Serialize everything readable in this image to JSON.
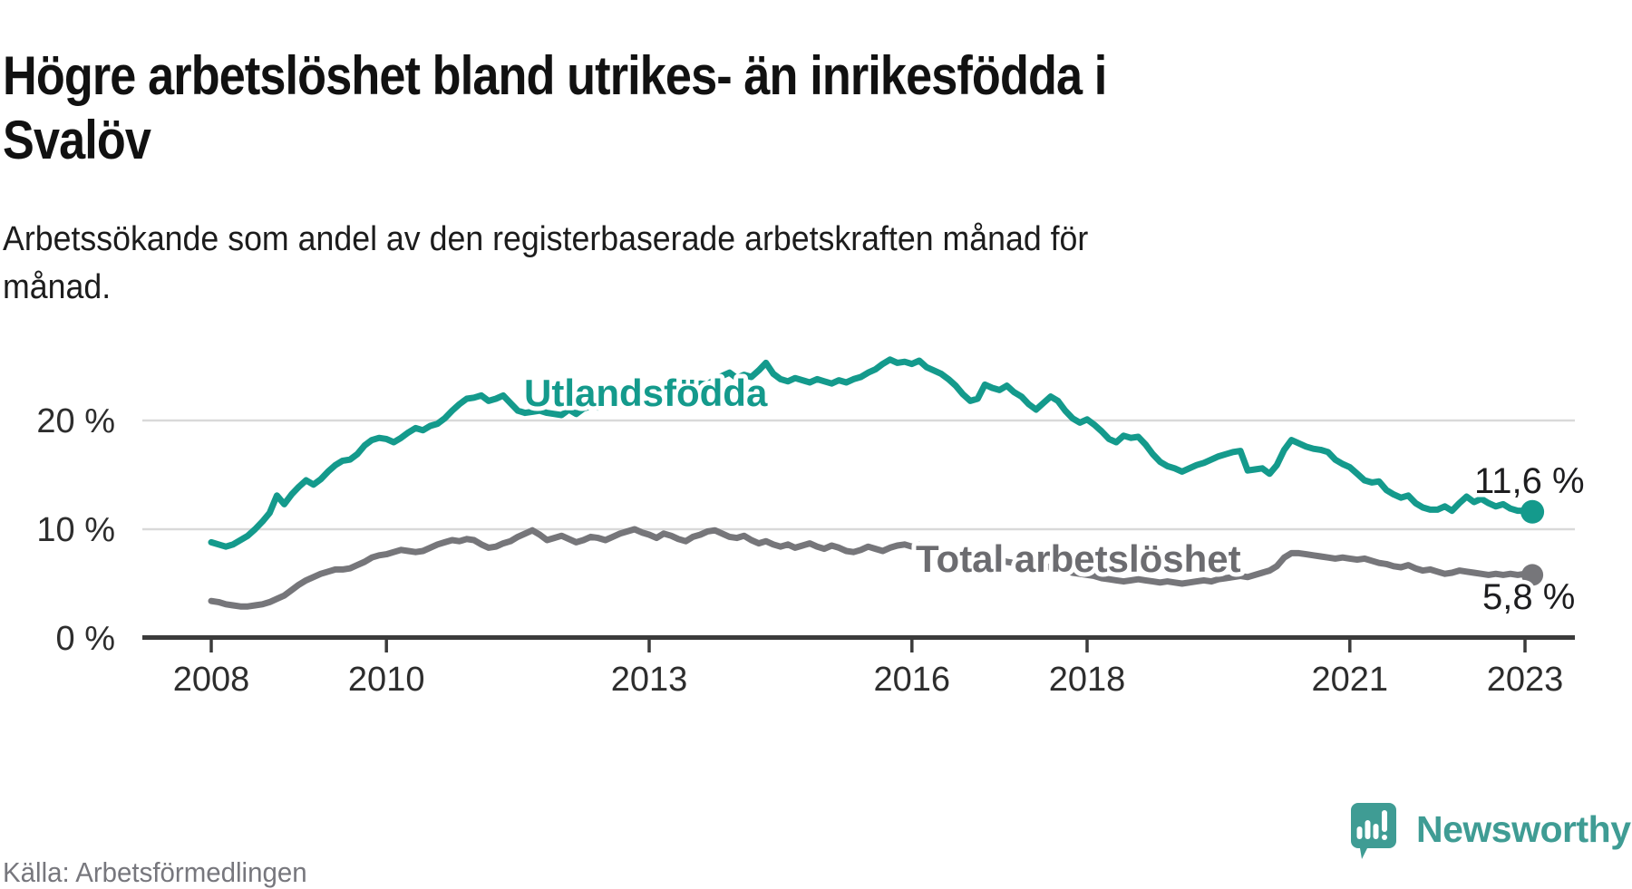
{
  "header": {
    "title": "Högre arbetslöshet bland utrikes- än inrikesfödda i\nSvalöv",
    "subtitle": "Arbetssökande som andel av den registerbaserade arbetskraften månad för\nmånad."
  },
  "footer": {
    "source": "Källa: Arbetsförmedlingen",
    "brand": "Newsworthy",
    "brand_icon": "newsworthy-speech-bubble-bar-chart-icon",
    "brand_color": "#3f9c94"
  },
  "chart_data": {
    "type": "line",
    "unit": "%",
    "frequency": "monthly",
    "x_start": "2008-01",
    "x_end": "2023-02",
    "grid": "horizontal",
    "legend": "inline-labels",
    "x_ticks": [
      "2008",
      "2010",
      "2013",
      "2016",
      "2018",
      "2021",
      "2023"
    ],
    "y_tick_labels": [
      "20 %",
      "10 %",
      "0 %"
    ],
    "y_tick_values": [
      20,
      10,
      0
    ],
    "ylim": [
      0,
      27
    ],
    "series": [
      {
        "name": "Utlandsfödda",
        "color": "#149a8c",
        "end_label": "11,6 %",
        "end_value": 11.6,
        "values": [
          8.8,
          8.6,
          8.4,
          8.6,
          9.0,
          9.4,
          10.0,
          10.7,
          11.5,
          13.1,
          12.3,
          13.2,
          13.9,
          14.5,
          14.1,
          14.6,
          15.3,
          15.9,
          16.3,
          16.4,
          16.9,
          17.7,
          18.2,
          18.4,
          18.3,
          18.0,
          18.4,
          18.9,
          19.3,
          19.1,
          19.5,
          19.7,
          20.2,
          20.9,
          21.5,
          22.0,
          22.1,
          22.3,
          21.8,
          22.0,
          22.3,
          21.6,
          20.9,
          20.7,
          20.8,
          20.9,
          20.7,
          20.6,
          20.5,
          21.0,
          20.6,
          21.1,
          21.3,
          21.2,
          21.5,
          21.7,
          21.4,
          21.8,
          22.0,
          22.3,
          22.1,
          22.6,
          22.4,
          22.9,
          23.2,
          22.8,
          23.1,
          23.4,
          23.3,
          23.8,
          24.1,
          24.4,
          23.9,
          24.2,
          24.0,
          24.6,
          25.3,
          24.3,
          23.8,
          23.6,
          23.9,
          23.7,
          23.5,
          23.8,
          23.6,
          23.4,
          23.7,
          23.5,
          23.8,
          24.0,
          24.4,
          24.7,
          25.2,
          25.6,
          25.3,
          25.4,
          25.2,
          25.5,
          24.9,
          24.6,
          24.3,
          23.8,
          23.2,
          22.4,
          21.8,
          22.0,
          23.3,
          23.0,
          22.8,
          23.2,
          22.6,
          22.2,
          21.5,
          21.0,
          21.6,
          22.2,
          21.8,
          20.9,
          20.2,
          19.8,
          20.1,
          19.6,
          19.0,
          18.3,
          18.0,
          18.6,
          18.4,
          18.5,
          17.8,
          16.9,
          16.2,
          15.8,
          15.6,
          15.3,
          15.6,
          15.9,
          16.1,
          16.4,
          16.7,
          16.9,
          17.1,
          17.2,
          15.4,
          15.5,
          15.6,
          15.1,
          15.9,
          17.3,
          18.2,
          17.9,
          17.6,
          17.4,
          17.3,
          17.1,
          16.4,
          16.0,
          15.7,
          15.1,
          14.5,
          14.3,
          14.4,
          13.6,
          13.2,
          12.9,
          13.1,
          12.4,
          12.0,
          11.8,
          11.8,
          12.1,
          11.7,
          12.4,
          13.0,
          12.5,
          12.8,
          12.4,
          12.1,
          12.3,
          11.9,
          11.7,
          11.7,
          11.6
        ]
      },
      {
        "name": "Total arbetslöshet",
        "color": "#76767a",
        "label_color": "#6c6c70",
        "end_label": "5,8 %",
        "end_value": 5.8,
        "values": [
          3.4,
          3.3,
          3.1,
          3.0,
          2.9,
          2.9,
          3.0,
          3.1,
          3.3,
          3.6,
          3.9,
          4.4,
          4.9,
          5.3,
          5.6,
          5.9,
          6.1,
          6.3,
          6.3,
          6.4,
          6.7,
          7.0,
          7.4,
          7.6,
          7.7,
          7.9,
          8.1,
          8.0,
          7.9,
          8.0,
          8.3,
          8.6,
          8.8,
          9.0,
          8.9,
          9.1,
          9.0,
          8.6,
          8.3,
          8.4,
          8.7,
          8.9,
          9.3,
          9.6,
          9.9,
          9.5,
          9.0,
          9.2,
          9.4,
          9.1,
          8.8,
          9.0,
          9.3,
          9.2,
          9.0,
          9.3,
          9.6,
          9.8,
          10.0,
          9.7,
          9.5,
          9.2,
          9.6,
          9.4,
          9.1,
          8.9,
          9.3,
          9.5,
          9.8,
          9.9,
          9.6,
          9.3,
          9.2,
          9.4,
          9.0,
          8.7,
          8.9,
          8.6,
          8.4,
          8.6,
          8.3,
          8.5,
          8.7,
          8.4,
          8.2,
          8.5,
          8.3,
          8.0,
          7.9,
          8.1,
          8.4,
          8.2,
          8.0,
          8.3,
          8.5,
          8.6,
          8.4,
          8.6,
          8.3,
          8.1,
          7.9,
          7.7,
          7.8,
          8.0,
          7.7,
          7.5,
          7.3,
          7.4,
          7.2,
          7.0,
          6.9,
          6.7,
          6.5,
          6.3,
          6.4,
          6.6,
          6.4,
          6.2,
          6.0,
          5.9,
          5.8,
          5.7,
          5.5,
          5.4,
          5.3,
          5.2,
          5.3,
          5.4,
          5.3,
          5.2,
          5.1,
          5.2,
          5.1,
          5.0,
          5.1,
          5.2,
          5.3,
          5.2,
          5.4,
          5.5,
          5.6,
          5.7,
          5.6,
          5.8,
          6.0,
          6.2,
          6.6,
          7.4,
          7.8,
          7.8,
          7.7,
          7.6,
          7.5,
          7.4,
          7.3,
          7.4,
          7.3,
          7.2,
          7.3,
          7.1,
          6.9,
          6.8,
          6.6,
          6.5,
          6.7,
          6.4,
          6.2,
          6.3,
          6.1,
          5.9,
          6.0,
          6.2,
          6.1,
          6.0,
          5.9,
          5.8,
          5.9,
          5.8,
          5.9,
          5.8,
          5.9,
          5.8
        ]
      }
    ]
  }
}
